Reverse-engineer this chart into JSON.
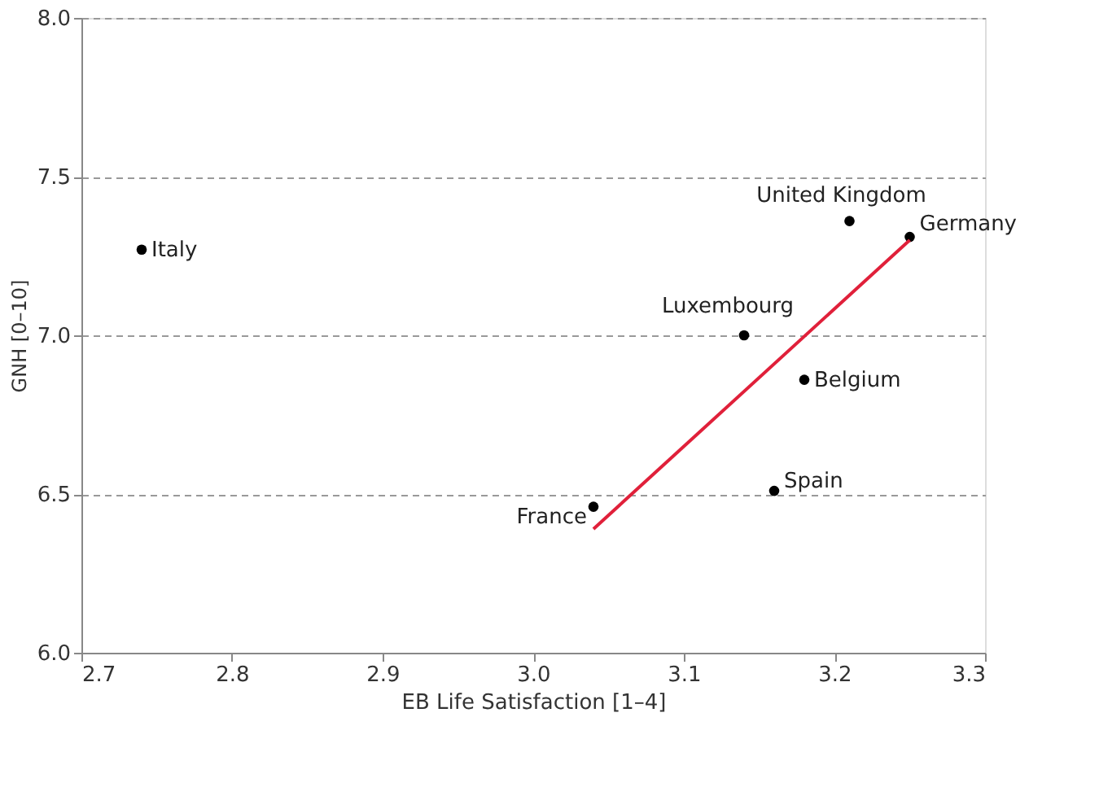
{
  "chart_data": {
    "type": "scatter",
    "xlabel": "EB Life Satisfaction [1–4]",
    "ylabel": "GNH [0–10]",
    "xlim": [
      2.7,
      3.3
    ],
    "xticks": [
      2.7,
      2.8,
      2.9,
      {
        "value": 3,
        "label": "3.0"
      },
      3.1,
      3.2,
      3.3
    ],
    "ylim": [
      6,
      8
    ],
    "yticks": [
      {
        "value": 6,
        "label": "6.0"
      },
      6.5,
      {
        "value": 7,
        "label": "7.0"
      },
      7.5,
      {
        "value": 8,
        "label": "8.0"
      }
    ],
    "grid": "y",
    "series": [
      {
        "type": "scatter",
        "marker": "circle",
        "color": "#000000",
        "x": [
          2.74,
          3.21,
          3.25,
          3.14,
          3.18,
          3.16,
          3.04
        ],
        "values": [
          7.27,
          7.36,
          7.31,
          7.0,
          6.86,
          6.51,
          6.46
        ]
      },
      {
        "type": "line",
        "color": "#e0203a",
        "x": [
          3.04,
          3.25
        ],
        "values": [
          6.39,
          7.3
        ]
      }
    ],
    "annotations": [
      {
        "text": "Italy",
        "x": 2.74,
        "y": 7.27
      },
      {
        "text": "United Kingdom",
        "x": 3.21,
        "y": 7.36
      },
      {
        "text": "Germany",
        "x": 3.25,
        "y": 7.31
      },
      {
        "text": "Luxembourg",
        "x": 3.14,
        "y": 7.0
      },
      {
        "text": "Belgium",
        "x": 3.18,
        "y": 6.86
      },
      {
        "text": "Spain",
        "x": 3.16,
        "y": 6.51
      },
      {
        "text": "France",
        "x": 3.04,
        "y": 6.46
      }
    ]
  }
}
